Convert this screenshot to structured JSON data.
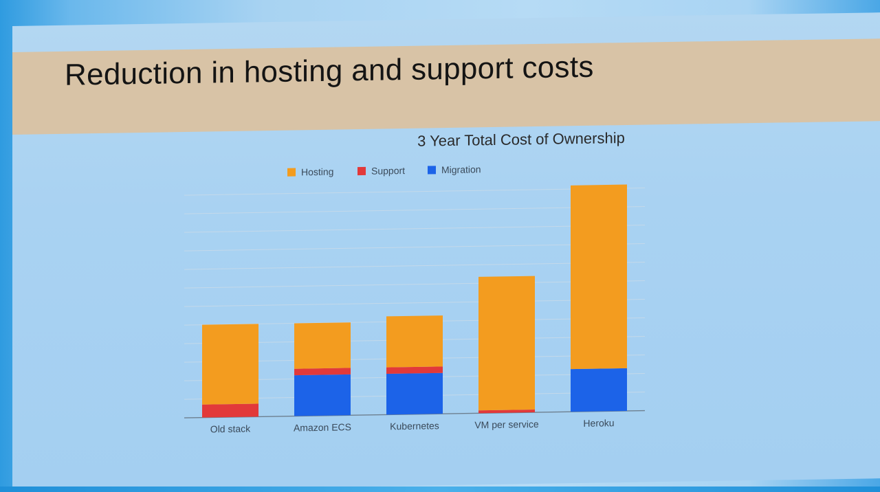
{
  "slide": {
    "title": "Reduction in hosting and support costs"
  },
  "colors": {
    "hosting": "#f39c1f",
    "support": "#e2393a",
    "migration": "#1c63e8",
    "band": "#d8c3a6"
  },
  "chart_data": {
    "type": "bar",
    "stacked": true,
    "title": "3 Year Total Cost of Ownership",
    "xlabel": "",
    "ylabel": "",
    "legend_position": "top",
    "grid": true,
    "ylim": [
      0,
      12
    ],
    "categories": [
      "Old stack",
      "Amazon ECS",
      "Kubernetes",
      "VM per service",
      "Heroku"
    ],
    "series": [
      {
        "name": "Migration",
        "color": "#1c63e8",
        "values": [
          0,
          2.2,
          2.2,
          0,
          2.3
        ]
      },
      {
        "name": "Support",
        "color": "#e2393a",
        "values": [
          0.7,
          0.35,
          0.35,
          0.15,
          0
        ]
      },
      {
        "name": "Hosting",
        "color": "#f39c1f",
        "values": [
          4.3,
          2.45,
          2.75,
          7.2,
          9.9
        ]
      }
    ],
    "legend": [
      "Hosting",
      "Support",
      "Migration"
    ]
  }
}
